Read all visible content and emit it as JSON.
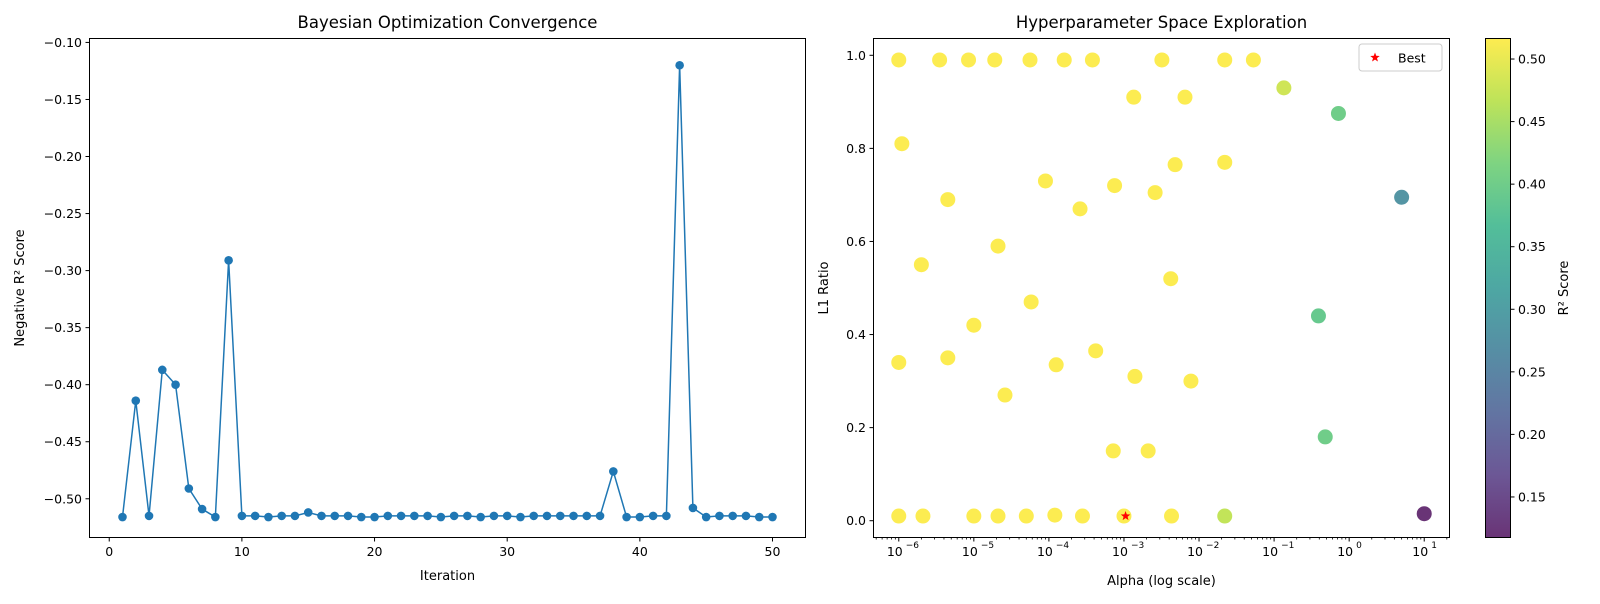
{
  "colors": {
    "line": "#1f77b4",
    "best_star": "#ff0000"
  },
  "chart_data": [
    {
      "type": "line",
      "title": "Bayesian Optimization Convergence",
      "xlabel": "Iteration",
      "ylabel": "Negative R² Score",
      "xlim": [
        -1.45,
        52.45
      ],
      "ylim": [
        -0.5335,
        -0.097
      ],
      "xticks": [
        0,
        10,
        20,
        30,
        40,
        50
      ],
      "yticks": [
        -0.1,
        -0.15,
        -0.2,
        -0.25,
        -0.3,
        -0.35,
        -0.4,
        -0.45,
        -0.5
      ],
      "xtick_labels": [
        "0",
        "10",
        "20",
        "30",
        "40",
        "50"
      ],
      "ytick_labels": [
        "−0.10",
        "−0.15",
        "−0.20",
        "−0.25",
        "−0.30",
        "−0.35",
        "−0.40",
        "−0.45",
        "−0.50"
      ],
      "grid": false,
      "series": [
        {
          "x": [
            1,
            2,
            3,
            4,
            5,
            6,
            7,
            8,
            9,
            10,
            11,
            12,
            13,
            14,
            15,
            16,
            17,
            18,
            19,
            20,
            21,
            22,
            23,
            24,
            25,
            26,
            27,
            28,
            29,
            30,
            31,
            32,
            33,
            34,
            35,
            36,
            37,
            38,
            39,
            40,
            41,
            42,
            43,
            44,
            45,
            46,
            47,
            48,
            49,
            50
          ],
          "values": [
            -0.516,
            -0.414,
            -0.515,
            -0.387,
            -0.4,
            -0.491,
            -0.509,
            -0.516,
            -0.291,
            -0.515,
            -0.515,
            -0.516,
            -0.515,
            -0.515,
            -0.512,
            -0.515,
            -0.515,
            -0.515,
            -0.516,
            -0.516,
            -0.515,
            -0.515,
            -0.515,
            -0.515,
            -0.516,
            -0.515,
            -0.515,
            -0.516,
            -0.515,
            -0.515,
            -0.516,
            -0.515,
            -0.515,
            -0.515,
            -0.515,
            -0.515,
            -0.515,
            -0.476,
            -0.516,
            -0.516,
            -0.515,
            -0.515,
            -0.12,
            -0.508,
            -0.516,
            -0.515,
            -0.515,
            -0.515,
            -0.516,
            -0.516
          ]
        }
      ]
    },
    {
      "type": "scatter",
      "title": "Hyperparameter Space Exploration",
      "xlabel": "Alpha (log scale)",
      "ylabel": "L1 Ratio",
      "xscale": "log",
      "xlim_exp": [
        -6.33,
        1.33
      ],
      "ylim": [
        -0.035,
        1.035
      ],
      "xticks_exp": [
        -6,
        -5,
        -4,
        -3,
        -2,
        -1,
        0,
        1
      ],
      "xtick_labels": [
        "10",
        "10",
        "10",
        "10",
        "10",
        "10",
        "10",
        "10"
      ],
      "xtick_exponents": [
        "−6",
        "−5",
        "−4",
        "−3",
        "−2",
        "−1",
        "0",
        "1"
      ],
      "yticks": [
        0.0,
        0.2,
        0.4,
        0.6,
        0.8,
        1.0
      ],
      "ytick_labels": [
        "0.0",
        "0.2",
        "0.4",
        "0.6",
        "0.8",
        "1.0"
      ],
      "grid": false,
      "legend_position": "top-right",
      "legend": [
        "Best"
      ],
      "colorbar": {
        "label": "R² Score",
        "range": [
          0.118,
          0.516
        ],
        "ticks": [
          0.15,
          0.2,
          0.25,
          0.3,
          0.35,
          0.4,
          0.45,
          0.5
        ],
        "tick_labels": [
          "0.15",
          "0.20",
          "0.25",
          "0.30",
          "0.35",
          "0.40",
          "0.45",
          "0.50"
        ],
        "colormap": "viridis",
        "alpha": 0.8
      },
      "points": [
        {
          "alpha": 1e-06,
          "l1": 0.99,
          "r2": 0.515
        },
        {
          "alpha": 3.5e-06,
          "l1": 0.99,
          "r2": 0.515
        },
        {
          "alpha": 8.5e-06,
          "l1": 0.99,
          "r2": 0.515
        },
        {
          "alpha": 1.9e-05,
          "l1": 0.99,
          "r2": 0.515
        },
        {
          "alpha": 5.6e-05,
          "l1": 0.99,
          "r2": 0.515
        },
        {
          "alpha": 0.00016,
          "l1": 0.99,
          "r2": 0.515
        },
        {
          "alpha": 0.00038,
          "l1": 0.99,
          "r2": 0.515
        },
        {
          "alpha": 0.0032,
          "l1": 0.99,
          "r2": 0.515
        },
        {
          "alpha": 0.022,
          "l1": 0.99,
          "r2": 0.515
        },
        {
          "alpha": 0.053,
          "l1": 0.99,
          "r2": 0.515
        },
        {
          "alpha": 0.00135,
          "l1": 0.91,
          "r2": 0.515
        },
        {
          "alpha": 0.0065,
          "l1": 0.91,
          "r2": 0.515
        },
        {
          "alpha": 0.135,
          "l1": 0.93,
          "r2": 0.48
        },
        {
          "alpha": 0.72,
          "l1": 0.875,
          "r2": 0.4
        },
        {
          "alpha": 1.1e-06,
          "l1": 0.81,
          "r2": 0.515
        },
        {
          "alpha": 4.5e-06,
          "l1": 0.69,
          "r2": 0.515
        },
        {
          "alpha": 9e-05,
          "l1": 0.73,
          "r2": 0.515
        },
        {
          "alpha": 0.00026,
          "l1": 0.67,
          "r2": 0.515
        },
        {
          "alpha": 0.00075,
          "l1": 0.72,
          "r2": 0.515
        },
        {
          "alpha": 0.0026,
          "l1": 0.705,
          "r2": 0.515
        },
        {
          "alpha": 0.0048,
          "l1": 0.765,
          "r2": 0.515
        },
        {
          "alpha": 0.022,
          "l1": 0.77,
          "r2": 0.515
        },
        {
          "alpha": 5.0,
          "l1": 0.695,
          "r2": 0.28
        },
        {
          "alpha": 2e-06,
          "l1": 0.55,
          "r2": 0.515
        },
        {
          "alpha": 2.1e-05,
          "l1": 0.59,
          "r2": 0.515
        },
        {
          "alpha": 5.8e-05,
          "l1": 0.47,
          "r2": 0.515
        },
        {
          "alpha": 0.0042,
          "l1": 0.52,
          "r2": 0.515
        },
        {
          "alpha": 1e-06,
          "l1": 0.34,
          "r2": 0.515
        },
        {
          "alpha": 4.5e-06,
          "l1": 0.35,
          "r2": 0.515
        },
        {
          "alpha": 1e-05,
          "l1": 0.42,
          "r2": 0.515
        },
        {
          "alpha": 2.6e-05,
          "l1": 0.27,
          "r2": 0.515
        },
        {
          "alpha": 0.000125,
          "l1": 0.335,
          "r2": 0.515
        },
        {
          "alpha": 0.00042,
          "l1": 0.365,
          "r2": 0.515
        },
        {
          "alpha": 0.0014,
          "l1": 0.31,
          "r2": 0.515
        },
        {
          "alpha": 0.0078,
          "l1": 0.3,
          "r2": 0.515
        },
        {
          "alpha": 0.39,
          "l1": 0.44,
          "r2": 0.39
        },
        {
          "alpha": 0.00072,
          "l1": 0.15,
          "r2": 0.515
        },
        {
          "alpha": 0.0021,
          "l1": 0.15,
          "r2": 0.515
        },
        {
          "alpha": 0.48,
          "l1": 0.18,
          "r2": 0.4
        },
        {
          "alpha": 1e-06,
          "l1": 0.01,
          "r2": 0.515
        },
        {
          "alpha": 2.1e-06,
          "l1": 0.01,
          "r2": 0.515
        },
        {
          "alpha": 1e-05,
          "l1": 0.01,
          "r2": 0.515
        },
        {
          "alpha": 2.1e-05,
          "l1": 0.01,
          "r2": 0.515
        },
        {
          "alpha": 5e-05,
          "l1": 0.01,
          "r2": 0.515
        },
        {
          "alpha": 0.00012,
          "l1": 0.012,
          "r2": 0.515
        },
        {
          "alpha": 0.00028,
          "l1": 0.01,
          "r2": 0.515
        },
        {
          "alpha": 0.001,
          "l1": 0.01,
          "r2": 0.515
        },
        {
          "alpha": 0.0043,
          "l1": 0.01,
          "r2": 0.515
        },
        {
          "alpha": 0.022,
          "l1": 0.01,
          "r2": 0.47
        },
        {
          "alpha": 10.0,
          "l1": 0.015,
          "r2": 0.118
        }
      ],
      "best": {
        "alpha": 0.00105,
        "l1": 0.01,
        "label": "Best"
      }
    }
  ]
}
